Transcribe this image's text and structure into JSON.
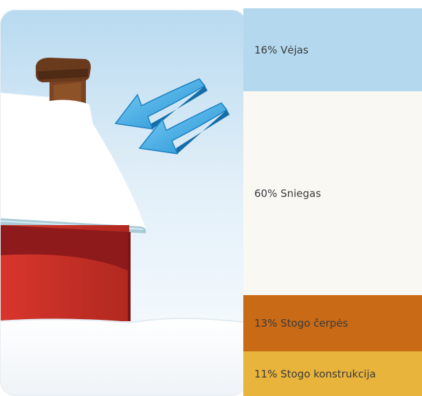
{
  "bands": [
    {
      "label": "16% Vėjas",
      "percent": 16,
      "color": "#b4d9ef"
    },
    {
      "label": "60% Sniegas",
      "percent": 60,
      "color": "#faf8f3"
    },
    {
      "label": "13% Stogo čerpės",
      "percent": 13,
      "color": "#c96a17"
    },
    {
      "label": "11% Stogo konstrukcija",
      "percent": 11,
      "color": "#e9b43c"
    }
  ],
  "illustration": {
    "house_wall_color": "#c0302a",
    "chimney_color": "#7a4423",
    "arrow_color": "#2fa3df"
  }
}
